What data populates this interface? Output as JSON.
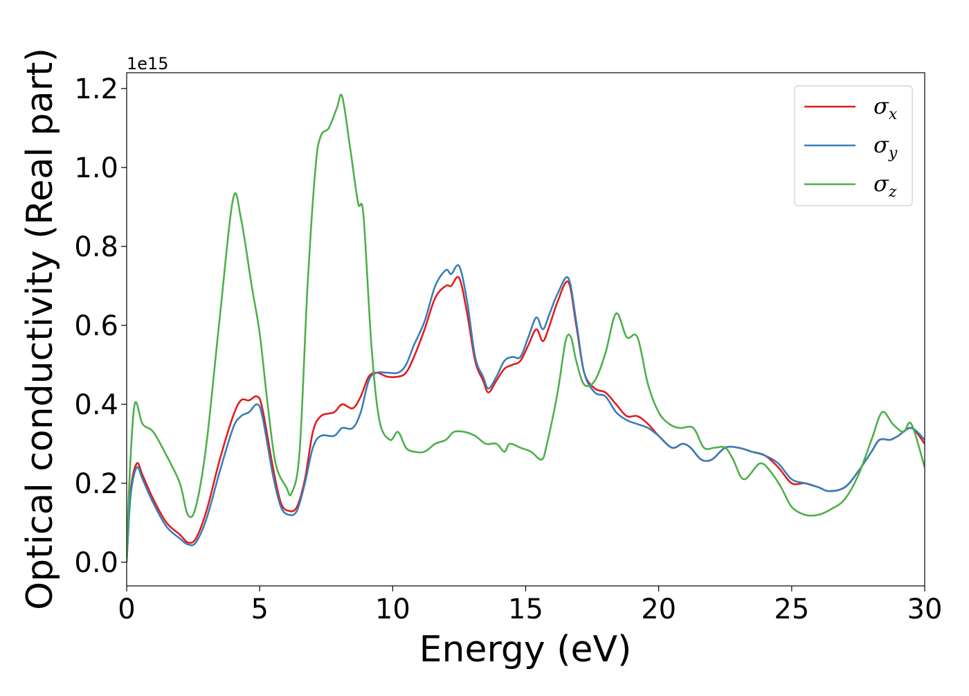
{
  "chart_data": {
    "type": "line",
    "xlabel": "Energy (eV)",
    "ylabel": "Optical conductivity (Real part)",
    "offset_text": "1e15",
    "xlim": [
      0,
      30
    ],
    "ylim": [
      -0.06,
      1.24
    ],
    "xticks": [
      0,
      5,
      10,
      15,
      20,
      25,
      30
    ],
    "xtick_labels": [
      "0",
      "5",
      "10",
      "15",
      "20",
      "25",
      "30"
    ],
    "yticks": [
      0.0,
      0.2,
      0.4,
      0.6,
      0.8,
      1.0,
      1.2
    ],
    "ytick_labels": [
      "0.0",
      "0.2",
      "0.4",
      "0.6",
      "0.8",
      "1.0",
      "1.2"
    ],
    "grid": false,
    "legend_position": "top-right",
    "series": [
      {
        "name": "σx",
        "legend_symbol": "σ",
        "legend_subscript": "x",
        "color": "#e41a1c",
        "points": [
          [
            0,
            0.0
          ],
          [
            0.15,
            0.18
          ],
          [
            0.38,
            0.25
          ],
          [
            0.6,
            0.22
          ],
          [
            1.0,
            0.16
          ],
          [
            1.5,
            0.1
          ],
          [
            2.0,
            0.07
          ],
          [
            2.3,
            0.05
          ],
          [
            2.6,
            0.06
          ],
          [
            3.0,
            0.13
          ],
          [
            3.5,
            0.26
          ],
          [
            4.0,
            0.37
          ],
          [
            4.3,
            0.41
          ],
          [
            4.6,
            0.41
          ],
          [
            4.9,
            0.42
          ],
          [
            5.1,
            0.39
          ],
          [
            5.5,
            0.24
          ],
          [
            5.8,
            0.15
          ],
          [
            6.1,
            0.13
          ],
          [
            6.4,
            0.14
          ],
          [
            6.7,
            0.21
          ],
          [
            7.0,
            0.33
          ],
          [
            7.3,
            0.37
          ],
          [
            7.8,
            0.38
          ],
          [
            8.1,
            0.4
          ],
          [
            8.5,
            0.39
          ],
          [
            8.8,
            0.42
          ],
          [
            9.1,
            0.47
          ],
          [
            9.4,
            0.48
          ],
          [
            9.8,
            0.47
          ],
          [
            10.2,
            0.47
          ],
          [
            10.5,
            0.48
          ],
          [
            10.8,
            0.52
          ],
          [
            11.2,
            0.59
          ],
          [
            11.6,
            0.67
          ],
          [
            12.0,
            0.7
          ],
          [
            12.2,
            0.7
          ],
          [
            12.5,
            0.72
          ],
          [
            12.8,
            0.63
          ],
          [
            13.1,
            0.51
          ],
          [
            13.4,
            0.46
          ],
          [
            13.6,
            0.43
          ],
          [
            13.9,
            0.46
          ],
          [
            14.2,
            0.49
          ],
          [
            14.5,
            0.5
          ],
          [
            14.8,
            0.51
          ],
          [
            15.1,
            0.55
          ],
          [
            15.4,
            0.59
          ],
          [
            15.65,
            0.56
          ],
          [
            15.9,
            0.6
          ],
          [
            16.2,
            0.66
          ],
          [
            16.6,
            0.71
          ],
          [
            16.9,
            0.6
          ],
          [
            17.2,
            0.48
          ],
          [
            17.6,
            0.44
          ],
          [
            18.0,
            0.43
          ],
          [
            18.4,
            0.4
          ],
          [
            18.8,
            0.37
          ],
          [
            19.2,
            0.37
          ],
          [
            19.6,
            0.35
          ],
          [
            20.0,
            0.32
          ],
          [
            20.5,
            0.29
          ],
          [
            20.9,
            0.3
          ],
          [
            21.2,
            0.29
          ],
          [
            21.6,
            0.26
          ],
          [
            22.0,
            0.26
          ],
          [
            22.5,
            0.29
          ],
          [
            23.0,
            0.29
          ],
          [
            23.5,
            0.28
          ],
          [
            24.0,
            0.27
          ],
          [
            24.5,
            0.24
          ],
          [
            25.0,
            0.2
          ],
          [
            25.5,
            0.2
          ],
          [
            26.0,
            0.19
          ],
          [
            26.4,
            0.18
          ],
          [
            27.0,
            0.19
          ],
          [
            27.5,
            0.23
          ],
          [
            28.0,
            0.28
          ],
          [
            28.3,
            0.31
          ],
          [
            28.7,
            0.31
          ],
          [
            29.0,
            0.32
          ],
          [
            29.5,
            0.34
          ],
          [
            30.0,
            0.3
          ]
        ]
      },
      {
        "name": "σy",
        "legend_symbol": "σ",
        "legend_subscript": "y",
        "color": "#377eb8",
        "points": [
          [
            0,
            0.0
          ],
          [
            0.15,
            0.17
          ],
          [
            0.38,
            0.24
          ],
          [
            0.6,
            0.21
          ],
          [
            1.0,
            0.15
          ],
          [
            1.5,
            0.09
          ],
          [
            2.0,
            0.06
          ],
          [
            2.3,
            0.045
          ],
          [
            2.6,
            0.05
          ],
          [
            3.0,
            0.11
          ],
          [
            3.5,
            0.23
          ],
          [
            4.0,
            0.34
          ],
          [
            4.3,
            0.37
          ],
          [
            4.6,
            0.38
          ],
          [
            4.9,
            0.4
          ],
          [
            5.1,
            0.37
          ],
          [
            5.5,
            0.22
          ],
          [
            5.8,
            0.14
          ],
          [
            6.1,
            0.12
          ],
          [
            6.4,
            0.13
          ],
          [
            6.7,
            0.2
          ],
          [
            7.0,
            0.29
          ],
          [
            7.3,
            0.32
          ],
          [
            7.8,
            0.32
          ],
          [
            8.1,
            0.34
          ],
          [
            8.5,
            0.34
          ],
          [
            8.8,
            0.38
          ],
          [
            9.1,
            0.46
          ],
          [
            9.4,
            0.48
          ],
          [
            9.8,
            0.48
          ],
          [
            10.2,
            0.48
          ],
          [
            10.5,
            0.5
          ],
          [
            10.8,
            0.55
          ],
          [
            11.2,
            0.61
          ],
          [
            11.6,
            0.7
          ],
          [
            12.0,
            0.74
          ],
          [
            12.2,
            0.73
          ],
          [
            12.5,
            0.75
          ],
          [
            12.8,
            0.66
          ],
          [
            13.1,
            0.52
          ],
          [
            13.4,
            0.47
          ],
          [
            13.6,
            0.44
          ],
          [
            13.9,
            0.47
          ],
          [
            14.2,
            0.51
          ],
          [
            14.5,
            0.52
          ],
          [
            14.8,
            0.52
          ],
          [
            15.1,
            0.57
          ],
          [
            15.4,
            0.62
          ],
          [
            15.65,
            0.59
          ],
          [
            15.9,
            0.63
          ],
          [
            16.2,
            0.68
          ],
          [
            16.6,
            0.72
          ],
          [
            16.9,
            0.61
          ],
          [
            17.2,
            0.48
          ],
          [
            17.6,
            0.43
          ],
          [
            18.0,
            0.42
          ],
          [
            18.4,
            0.38
          ],
          [
            18.8,
            0.36
          ],
          [
            19.2,
            0.35
          ],
          [
            19.6,
            0.34
          ],
          [
            20.0,
            0.32
          ],
          [
            20.5,
            0.29
          ],
          [
            20.9,
            0.3
          ],
          [
            21.2,
            0.29
          ],
          [
            21.6,
            0.26
          ],
          [
            22.0,
            0.26
          ],
          [
            22.5,
            0.29
          ],
          [
            23.0,
            0.29
          ],
          [
            23.5,
            0.28
          ],
          [
            24.0,
            0.27
          ],
          [
            24.5,
            0.25
          ],
          [
            25.0,
            0.21
          ],
          [
            25.5,
            0.2
          ],
          [
            26.0,
            0.19
          ],
          [
            26.4,
            0.18
          ],
          [
            27.0,
            0.19
          ],
          [
            27.5,
            0.23
          ],
          [
            28.0,
            0.28
          ],
          [
            28.3,
            0.31
          ],
          [
            28.7,
            0.31
          ],
          [
            29.0,
            0.32
          ],
          [
            29.5,
            0.34
          ],
          [
            30.0,
            0.31
          ]
        ]
      },
      {
        "name": "σz",
        "legend_symbol": "σ",
        "legend_subscript": "z",
        "color": "#4daf4a",
        "points": [
          [
            0,
            0.0
          ],
          [
            0.1,
            0.2
          ],
          [
            0.3,
            0.4
          ],
          [
            0.6,
            0.35
          ],
          [
            1.0,
            0.33
          ],
          [
            1.5,
            0.27
          ],
          [
            2.0,
            0.2
          ],
          [
            2.3,
            0.12
          ],
          [
            2.6,
            0.14
          ],
          [
            3.0,
            0.3
          ],
          [
            3.5,
            0.62
          ],
          [
            4.0,
            0.92
          ],
          [
            4.3,
            0.87
          ],
          [
            4.7,
            0.7
          ],
          [
            5.0,
            0.58
          ],
          [
            5.3,
            0.4
          ],
          [
            5.6,
            0.25
          ],
          [
            6.0,
            0.19
          ],
          [
            6.2,
            0.175
          ],
          [
            6.5,
            0.28
          ],
          [
            6.8,
            0.7
          ],
          [
            7.1,
            1.0
          ],
          [
            7.3,
            1.08
          ],
          [
            7.6,
            1.1
          ],
          [
            7.9,
            1.15
          ],
          [
            8.1,
            1.18
          ],
          [
            8.4,
            1.05
          ],
          [
            8.7,
            0.91
          ],
          [
            8.9,
            0.88
          ],
          [
            9.2,
            0.55
          ],
          [
            9.5,
            0.36
          ],
          [
            9.9,
            0.31
          ],
          [
            10.2,
            0.33
          ],
          [
            10.5,
            0.29
          ],
          [
            10.8,
            0.28
          ],
          [
            11.2,
            0.28
          ],
          [
            11.6,
            0.3
          ],
          [
            12.0,
            0.31
          ],
          [
            12.3,
            0.33
          ],
          [
            12.7,
            0.33
          ],
          [
            13.1,
            0.32
          ],
          [
            13.5,
            0.3
          ],
          [
            13.9,
            0.3
          ],
          [
            14.2,
            0.28
          ],
          [
            14.4,
            0.3
          ],
          [
            14.8,
            0.29
          ],
          [
            15.2,
            0.28
          ],
          [
            15.6,
            0.26
          ],
          [
            15.8,
            0.3
          ],
          [
            16.2,
            0.43
          ],
          [
            16.5,
            0.56
          ],
          [
            16.7,
            0.57
          ],
          [
            16.9,
            0.51
          ],
          [
            17.2,
            0.45
          ],
          [
            17.6,
            0.46
          ],
          [
            18.0,
            0.53
          ],
          [
            18.4,
            0.63
          ],
          [
            18.8,
            0.57
          ],
          [
            19.2,
            0.57
          ],
          [
            19.6,
            0.45
          ],
          [
            20.0,
            0.38
          ],
          [
            20.4,
            0.35
          ],
          [
            20.8,
            0.34
          ],
          [
            21.3,
            0.34
          ],
          [
            21.7,
            0.29
          ],
          [
            22.1,
            0.29
          ],
          [
            22.5,
            0.29
          ],
          [
            22.8,
            0.26
          ],
          [
            23.2,
            0.21
          ],
          [
            23.8,
            0.25
          ],
          [
            24.2,
            0.23
          ],
          [
            24.6,
            0.19
          ],
          [
            25.0,
            0.14
          ],
          [
            25.5,
            0.12
          ],
          [
            26.0,
            0.12
          ],
          [
            26.5,
            0.135
          ],
          [
            27.0,
            0.16
          ],
          [
            27.5,
            0.22
          ],
          [
            28.0,
            0.31
          ],
          [
            28.4,
            0.38
          ],
          [
            28.8,
            0.35
          ],
          [
            29.2,
            0.33
          ],
          [
            29.5,
            0.35
          ],
          [
            30.0,
            0.24
          ]
        ]
      }
    ]
  }
}
